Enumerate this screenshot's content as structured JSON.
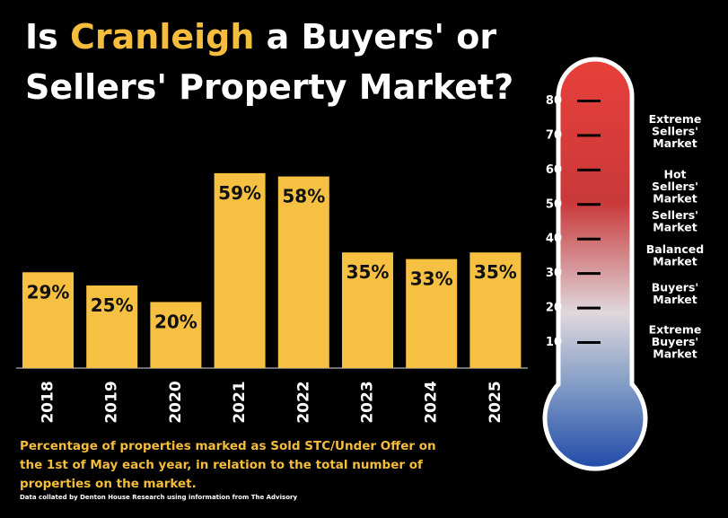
{
  "chart_data": [
    {
      "type": "bar",
      "title_prefix": "Is",
      "title_highlight": "Cranleigh",
      "title_suffix": "a Buyers' or",
      "title_line2": "Sellers' Property Market?",
      "categories": [
        "2018",
        "2019",
        "2020",
        "2021",
        "2022",
        "2023",
        "2024",
        "2025"
      ],
      "values": [
        29,
        25,
        20,
        59,
        58,
        35,
        33,
        35
      ],
      "value_labels": [
        "29%",
        "25%",
        "20%",
        "59%",
        "58%",
        "35%",
        "33%",
        "35%"
      ],
      "color": "#f6c143",
      "caption_lines": [
        "Percentage of properties marked as Sold STC/Under Offer on",
        "the 1st of May each year, in relation to the total number of",
        "properties on the market."
      ],
      "source": "Data collated by Denton House Research using information from The Advisory"
    },
    {
      "type": "thermometer",
      "ylim": [
        0,
        90
      ],
      "yticks": [
        10,
        20,
        30,
        40,
        50,
        60,
        70,
        80
      ],
      "zones": [
        {
          "label": [
            "Extreme",
            "Sellers'",
            "Market"
          ],
          "value": 71
        },
        {
          "label": [
            "Hot",
            "Sellers'",
            "Market"
          ],
          "value": 55
        },
        {
          "label": [
            "Sellers'",
            "Market"
          ],
          "value": 45
        },
        {
          "label": [
            "Balanced",
            "Market"
          ],
          "value": 35
        },
        {
          "label": [
            "Buyers'",
            "Market"
          ],
          "value": 24
        },
        {
          "label": [
            "Extreme",
            "Buyers'",
            "Market"
          ],
          "value": 10
        }
      ]
    }
  ]
}
